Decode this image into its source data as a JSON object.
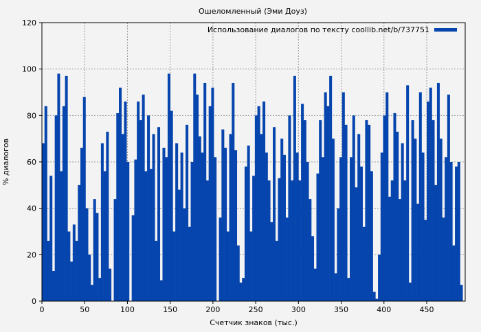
{
  "chart_data": {
    "type": "bar",
    "title": "Ошеломленный (Эми Доуз)",
    "xlabel": "Счетчик знаков (тыс.)",
    "ylabel": "% диалогов",
    "legend": {
      "label": "Использование диалогов по тексту coollib.net/b/737751",
      "placement": "top-right"
    },
    "series_color": "#0645ad",
    "xlim": [
      0,
      495
    ],
    "ylim": [
      0,
      120
    ],
    "xticks": [
      0,
      50,
      100,
      150,
      200,
      250,
      300,
      350,
      400,
      450
    ],
    "yticks": [
      0,
      20,
      40,
      60,
      80,
      100,
      120
    ],
    "grid": true,
    "bin_width": 3,
    "x_start": 0,
    "values": [
      68,
      84,
      26,
      54,
      13,
      80,
      98,
      56,
      84,
      97,
      30,
      17,
      33,
      26,
      50,
      66,
      88,
      40,
      20,
      7,
      44,
      38,
      10,
      68,
      56,
      73,
      14,
      0,
      44,
      81,
      92,
      72,
      86,
      60,
      0,
      37,
      61,
      86,
      78,
      89,
      56,
      80,
      57,
      72,
      26,
      75,
      9,
      66,
      62,
      98,
      82,
      30,
      68,
      48,
      64,
      40,
      76,
      32,
      60,
      98,
      89,
      71,
      64,
      94,
      52,
      84,
      92,
      62,
      0,
      36,
      74,
      66,
      30,
      72,
      94,
      65,
      24,
      8,
      10,
      58,
      67,
      30,
      54,
      80,
      84,
      72,
      86,
      64,
      52,
      34,
      75,
      26,
      53,
      70,
      63,
      36,
      80,
      52,
      97,
      64,
      52,
      85,
      78,
      60,
      44,
      28,
      14,
      55,
      78,
      62,
      90,
      84,
      97,
      70,
      12,
      40,
      62,
      90,
      76,
      10,
      62,
      80,
      49,
      72,
      58,
      32,
      78,
      76,
      56,
      4,
      1,
      20,
      64,
      80,
      90,
      45,
      52,
      81,
      73,
      44,
      68,
      52,
      93,
      8,
      78,
      70,
      42,
      90,
      64,
      35,
      86,
      92,
      78,
      50,
      94,
      70,
      36,
      62,
      89,
      60,
      24,
      58,
      60,
      7
    ]
  }
}
